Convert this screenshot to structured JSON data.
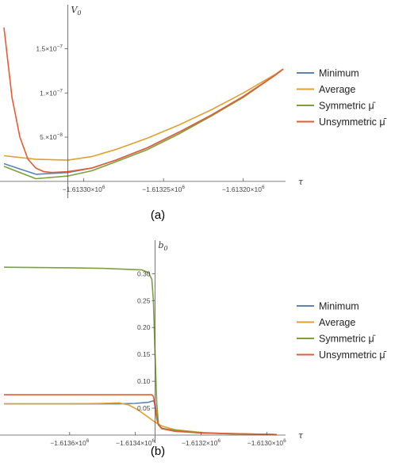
{
  "chart_data": [
    {
      "type": "line",
      "caption": "(a)",
      "ylabel_main": "V",
      "ylabel_sub": "0",
      "xlabel": "τ",
      "xlim": [
        -1613350.0,
        -1613175.0
      ],
      "ylim": [
        -1e-08,
        1.8e-07
      ],
      "x_axis_at_y": 0,
      "y_axis_at_x": -1613310.0,
      "x_ticks": [
        {
          "value": -1613300.0,
          "sign": "−",
          "mantissa": "1.61330",
          "base": "×10",
          "exp": "6"
        },
        {
          "value": -1613250.0,
          "sign": "−",
          "mantissa": "1.61325",
          "base": "×10",
          "exp": "6"
        },
        {
          "value": -1613200.0,
          "sign": "−",
          "mantissa": "1.61320",
          "base": "×10",
          "exp": "6"
        }
      ],
      "y_ticks": [
        {
          "value": 5e-08,
          "mantissa": "5.",
          "base": "×10",
          "exp": "−8"
        },
        {
          "value": 1e-07,
          "mantissa": "1.",
          "base": "×10",
          "exp": "−7"
        },
        {
          "value": 1.5e-07,
          "mantissa": "1.5",
          "base": "×10",
          "exp": "−7"
        }
      ],
      "series": [
        {
          "name": "Minimum",
          "color": "#5b84b1",
          "x": [
            -1613350.0,
            -1613330.0,
            -1613310.0,
            -1613295.0,
            -1613280.0,
            -1613260.0,
            -1613240.0,
            -1613220.0,
            -1613200.0,
            -1613180.0,
            -1613175.0
          ],
          "y": [
            2e-08,
            8e-09,
            1e-08,
            1.5e-08,
            2.4e-08,
            3.8e-08,
            5.6e-08,
            7.5e-08,
            9.6e-08,
            1.2e-07,
            1.27e-07
          ]
        },
        {
          "name": "Average",
          "color": "#e0a030",
          "x": [
            -1613350.0,
            -1613330.0,
            -1613310.0,
            -1613295.0,
            -1613280.0,
            -1613260.0,
            -1613240.0,
            -1613220.0,
            -1613200.0,
            -1613180.0,
            -1613175.0
          ],
          "y": [
            2.9e-08,
            2.5e-08,
            2.4e-08,
            2.8e-08,
            3.6e-08,
            4.9e-08,
            6.4e-08,
            8.1e-08,
            1e-07,
            1.21e-07,
            1.27e-07
          ]
        },
        {
          "name": "Symmetric μ̄",
          "color": "#7ba13c",
          "x": [
            -1613350.0,
            -1613330.0,
            -1613310.0,
            -1613295.0,
            -1613280.0,
            -1613260.0,
            -1613240.0,
            -1613220.0,
            -1613200.0,
            -1613180.0,
            -1613175.0
          ],
          "y": [
            1.7e-08,
            3e-09,
            6e-09,
            1.2e-08,
            2.2e-08,
            3.6e-08,
            5.4e-08,
            7.4e-08,
            9.5e-08,
            1.2e-07,
            1.27e-07
          ]
        },
        {
          "name": "Unsymmetric μ̄",
          "color": "#e35c35",
          "x": [
            -1613350.0,
            -1613345.0,
            -1613340.0,
            -1613335.0,
            -1613330.0,
            -1613325.0,
            -1613320.0,
            -1613310.0,
            -1613295.0,
            -1613280.0,
            -1613260.0,
            -1613240.0,
            -1613220.0,
            -1613200.0,
            -1613180.0,
            -1613175.0
          ],
          "y": [
            1.74e-07,
            9.5e-08,
            5e-08,
            2.5e-08,
            1.5e-08,
            1.1e-08,
            1e-08,
            1.1e-08,
            1.5e-08,
            2.4e-08,
            3.8e-08,
            5.6e-08,
            7.5e-08,
            9.6e-08,
            1.2e-07,
            1.27e-07
          ]
        }
      ]
    },
    {
      "type": "line",
      "caption": "(b)",
      "ylabel_main": "b",
      "ylabel_sub": "0",
      "xlabel": "τ",
      "xlim": [
        -1613800.0,
        -1612950.0
      ],
      "ylim": [
        0.0,
        0.33
      ],
      "x_axis_at_y": 0,
      "y_axis_at_x": -1613340.0,
      "x_ticks": [
        {
          "value": -1613600.0,
          "sign": "−",
          "mantissa": "1.6136",
          "base": "×10",
          "exp": "6"
        },
        {
          "value": -1613400.0,
          "sign": "−",
          "mantissa": "1.6134",
          "base": "×10",
          "exp": "6"
        },
        {
          "value": -1613200.0,
          "sign": "−",
          "mantissa": "1.6132",
          "base": "×10",
          "exp": "6"
        },
        {
          "value": -1613000.0,
          "sign": "−",
          "mantissa": "1.6130",
          "base": "×10",
          "exp": "6"
        }
      ],
      "y_ticks": [
        {
          "value": 0.05,
          "label": "0.05"
        },
        {
          "value": 0.1,
          "label": "0.10"
        },
        {
          "value": 0.15,
          "label": "0.15"
        },
        {
          "value": 0.2,
          "label": "0.20"
        },
        {
          "value": 0.25,
          "label": "0.25"
        },
        {
          "value": 0.3,
          "label": "0.30"
        }
      ],
      "series": [
        {
          "name": "Minimum",
          "color": "#5b84b1",
          "x": [
            -1613800.0,
            -1613600.0,
            -1613450.0,
            -1613400.0,
            -1613360.0,
            -1613345.0,
            -1613340.0,
            -1613335.0,
            -1613330.0,
            -1613320.0,
            -1613280.0,
            -1613200.0,
            -1613100.0,
            -1612970.0
          ],
          "y": [
            0.058,
            0.058,
            0.058,
            0.059,
            0.061,
            0.064,
            0.058,
            0.035,
            0.02,
            0.013,
            0.008,
            0.004,
            0.002,
            0.001
          ]
        },
        {
          "name": "Average",
          "color": "#e0a030",
          "x": [
            -1613800.0,
            -1613600.0,
            -1613500.0,
            -1613450.0,
            -1613420.0,
            -1613390.0,
            -1613360.0,
            -1613340.0,
            -1613320.0,
            -1613280.0,
            -1613200.0,
            -1613100.0,
            -1612970.0
          ],
          "y": [
            0.058,
            0.058,
            0.059,
            0.06,
            0.056,
            0.046,
            0.033,
            0.024,
            0.017,
            0.01,
            0.005,
            0.002,
            0.001
          ]
        },
        {
          "name": "Symmetric μ̄",
          "color": "#7ba13c",
          "x": [
            -1613800.0,
            -1613600.0,
            -1613500.0,
            -1613380.0,
            -1613360.0,
            -1613350.0,
            -1613345.0,
            -1613340.0,
            -1613335.0,
            -1613330.0,
            -1613320.0,
            -1613200.0,
            -1612970.0
          ],
          "y": [
            0.312,
            0.311,
            0.31,
            0.307,
            0.302,
            0.29,
            0.25,
            0.15,
            0.06,
            0.022,
            0.012,
            0.004,
            0.001
          ]
        },
        {
          "name": "Unsymmetric μ̄",
          "color": "#e35c35",
          "x": [
            -1613800.0,
            -1613600.0,
            -1613500.0,
            -1613360.0,
            -1613350.0,
            -1613345.0,
            -1613340.0,
            -1613335.0,
            -1613330.0,
            -1613320.0,
            -1613280.0,
            -1613200.0,
            -1612970.0
          ],
          "y": [
            0.075,
            0.075,
            0.075,
            0.075,
            0.075,
            0.072,
            0.052,
            0.03,
            0.019,
            0.012,
            0.007,
            0.004,
            0.001
          ]
        }
      ]
    }
  ]
}
